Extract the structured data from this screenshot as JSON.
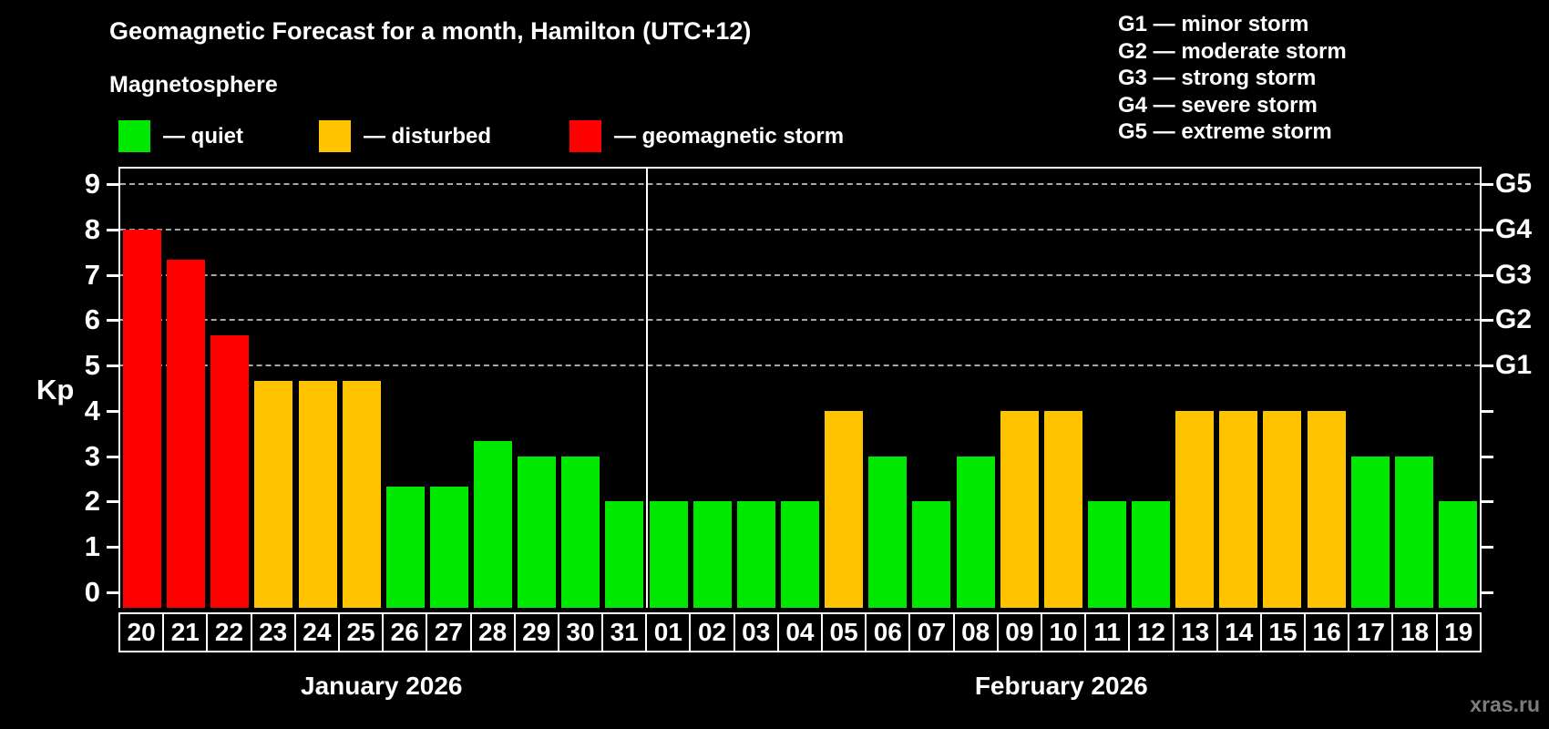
{
  "title": "Geomagnetic Forecast for a month, Hamilton (UTC+12)",
  "subtitle": "Magnetosphere",
  "legend": {
    "items": [
      {
        "status": "quiet",
        "label": "— quiet"
      },
      {
        "status": "disturbed",
        "label": "— disturbed"
      },
      {
        "status": "storm",
        "label": "— geomagnetic storm"
      }
    ]
  },
  "g_scale_legend": [
    "G1 — minor storm",
    "G2 — moderate storm",
    "G3 — strong storm",
    "G4 — severe storm",
    "G5 — extreme storm"
  ],
  "watermark": "xras.ru",
  "chart_data": {
    "type": "bar",
    "title": "Geomagnetic Forecast for a month, Hamilton (UTC+12)",
    "ylabel": "Kp",
    "ylim": [
      0,
      9.5
    ],
    "yticks": [
      0,
      1,
      2,
      3,
      4,
      5,
      6,
      7,
      8,
      9
    ],
    "gridlines_at": [
      5,
      6,
      7,
      8,
      9
    ],
    "grid": "horizontal dashed lines at storm levels G1–G5",
    "legend_position": "top",
    "right_axis_labels": [
      {
        "kp": 5,
        "label": "G1"
      },
      {
        "kp": 6,
        "label": "G2"
      },
      {
        "kp": 7,
        "label": "G3"
      },
      {
        "kp": 8,
        "label": "G4"
      },
      {
        "kp": 9,
        "label": "G5"
      }
    ],
    "months": [
      {
        "label": "January 2026",
        "days": 12
      },
      {
        "label": "February 2026",
        "days": 19
      }
    ],
    "categories": [
      "20",
      "21",
      "22",
      "23",
      "24",
      "25",
      "26",
      "27",
      "28",
      "29",
      "30",
      "31",
      "01",
      "02",
      "03",
      "04",
      "05",
      "06",
      "07",
      "08",
      "09",
      "10",
      "11",
      "12",
      "13",
      "14",
      "15",
      "16",
      "17",
      "18",
      "19"
    ],
    "values": [
      8,
      7.33,
      5.67,
      4.67,
      4.67,
      4.67,
      2.33,
      2.33,
      3.33,
      3,
      3,
      2,
      2,
      2,
      2,
      2,
      4,
      3,
      2,
      3,
      4,
      4,
      2,
      2,
      4,
      4,
      4,
      4,
      3,
      3,
      2
    ],
    "statuses": [
      "storm",
      "storm",
      "storm",
      "disturbed",
      "disturbed",
      "disturbed",
      "quiet",
      "quiet",
      "quiet",
      "quiet",
      "quiet",
      "quiet",
      "quiet",
      "quiet",
      "quiet",
      "quiet",
      "disturbed",
      "quiet",
      "quiet",
      "quiet",
      "disturbed",
      "disturbed",
      "quiet",
      "quiet",
      "disturbed",
      "disturbed",
      "disturbed",
      "disturbed",
      "quiet",
      "quiet",
      "quiet"
    ],
    "colors": {
      "quiet": "#00e800",
      "disturbed": "#ffc300",
      "storm": "#ff0000",
      "background": "#000000",
      "text": "#ffffff",
      "gridline": "#a8a8a8"
    }
  }
}
